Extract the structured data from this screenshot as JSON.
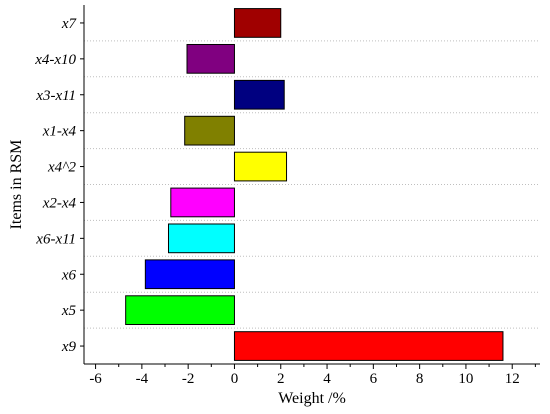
{
  "chart_data": {
    "type": "bar",
    "orientation": "horizontal",
    "xlabel": "Weight /%",
    "ylabel": "Items in RSM",
    "xlim": [
      -6.5,
      13.2
    ],
    "xticks": [
      -6,
      -4,
      -2,
      0,
      2,
      4,
      6,
      8,
      10,
      12
    ],
    "grid": "horizontal dotted",
    "categories": [
      "x9",
      "x5",
      "x6",
      "x6-x11",
      "x2-x4",
      "x4^2",
      "x1-x4",
      "x3-x11",
      "x4-x10",
      "x7"
    ],
    "values": [
      11.6,
      -4.7,
      -3.85,
      -2.85,
      -2.75,
      2.25,
      -2.15,
      2.15,
      -2.05,
      2.0
    ],
    "colors": [
      "#ff0000",
      "#00ff00",
      "#0000ff",
      "#00ffff",
      "#ff00ff",
      "#ffff00",
      "#808000",
      "#000080",
      "#800080",
      "#a00000"
    ]
  }
}
